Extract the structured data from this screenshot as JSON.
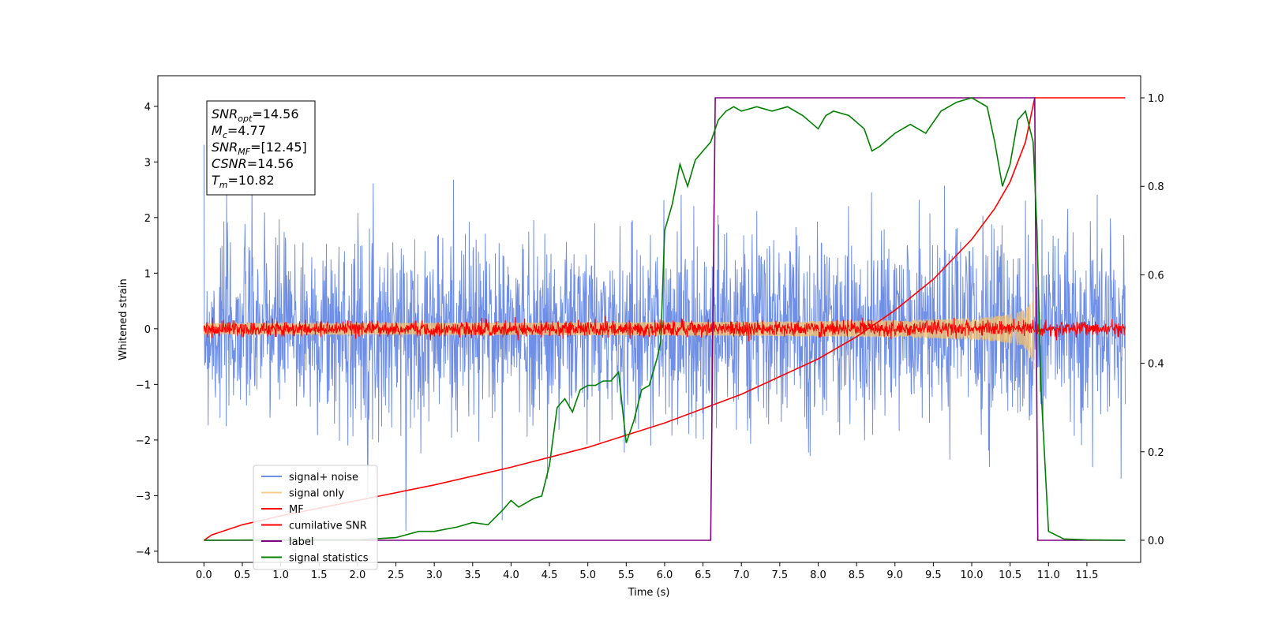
{
  "chart_data": {
    "type": "line",
    "xlabel": "Time (s)",
    "ylabel": "Whitened strain",
    "xlim": [
      -0.6,
      12.2
    ],
    "ylim": [
      -4.2,
      4.55
    ],
    "y2lim": [
      -0.05,
      1.05
    ],
    "x_ticks": [
      "0.0",
      "0.5",
      "1.0",
      "1.5",
      "2.0",
      "2.5",
      "3.0",
      "3.5",
      "4.0",
      "4.5",
      "5.0",
      "5.5",
      "6.0",
      "6.5",
      "7.0",
      "7.5",
      "8.0",
      "8.5",
      "9.0",
      "9.5",
      "10.0",
      "10.5",
      "11.0",
      "11.5"
    ],
    "y_ticks": [
      "4",
      "3",
      "2",
      "1",
      "0",
      "−1",
      "−2",
      "−3",
      "−4"
    ],
    "y2_ticks": [
      "1.0",
      "0.8",
      "0.6",
      "0.4",
      "0.2",
      "0.0"
    ],
    "annotation": {
      "lines": [
        {
          "main": "SNR",
          "sub": "opt",
          "rest": "=14.56"
        },
        {
          "main": "M",
          "sub": "c",
          "rest": "=4.77"
        },
        {
          "main": "SNR",
          "sub": "MF",
          "rest": "=[12.45]"
        },
        {
          "main": "CSNR",
          "sub": "",
          "rest": "=14.56"
        },
        {
          "main": "T",
          "sub": "m",
          "rest": "=10.82"
        }
      ]
    },
    "series": [
      {
        "name": "signal+ noise",
        "color": "#6f8fe6",
        "axis": "left",
        "style": "noise",
        "x_range": [
          0,
          12
        ],
        "amplitude_sd": 0.85
      },
      {
        "name": "signal only",
        "color": "#f5c26b",
        "axis": "left",
        "style": "chirp",
        "x_range": [
          0,
          10.82
        ],
        "envelope_end": 0.9
      },
      {
        "name": "MF",
        "color": "#ff0000",
        "axis": "left",
        "style": "noise",
        "x_range": [
          0,
          12
        ],
        "amplitude_sd": 0.07
      },
      {
        "name": "cumilative SNR",
        "color": "#ff0000",
        "axis": "right",
        "x": [
          0,
          0.1,
          0.5,
          1.0,
          2.0,
          3.0,
          4.0,
          5.0,
          6.0,
          7.0,
          8.0,
          8.5,
          9.0,
          9.5,
          10.0,
          10.3,
          10.5,
          10.7,
          10.82,
          12.0
        ],
        "values": [
          0,
          0.012,
          0.035,
          0.055,
          0.09,
          0.125,
          0.165,
          0.21,
          0.265,
          0.33,
          0.41,
          0.46,
          0.52,
          0.59,
          0.68,
          0.75,
          0.81,
          0.9,
          1.0,
          1.0
        ]
      },
      {
        "name": "label",
        "color": "#800080",
        "axis": "right",
        "x": [
          0,
          6.6,
          6.66,
          10.82,
          10.86,
          12.0
        ],
        "values": [
          0,
          0,
          1,
          1,
          0,
          0
        ]
      },
      {
        "name": "signal statistics",
        "color": "#008000",
        "axis": "right",
        "x": [
          0,
          1.0,
          2.0,
          2.5,
          2.8,
          3.0,
          3.3,
          3.5,
          3.7,
          3.9,
          4.0,
          4.1,
          4.3,
          4.4,
          4.5,
          4.6,
          4.65,
          4.7,
          4.8,
          4.9,
          5.0,
          5.1,
          5.2,
          5.3,
          5.4,
          5.5,
          5.6,
          5.7,
          5.8,
          5.9,
          5.95,
          6.0,
          6.1,
          6.2,
          6.3,
          6.4,
          6.5,
          6.6,
          6.7,
          6.8,
          6.9,
          7.0,
          7.2,
          7.4,
          7.6,
          7.8,
          8.0,
          8.1,
          8.2,
          8.4,
          8.6,
          8.7,
          8.8,
          9.0,
          9.2,
          9.4,
          9.6,
          9.8,
          10.0,
          10.2,
          10.3,
          10.4,
          10.5,
          10.6,
          10.7,
          10.8,
          10.85,
          10.9,
          11.0,
          11.2,
          11.5,
          12.0
        ],
        "values": [
          0.0,
          0.001,
          0.001,
          0.006,
          0.02,
          0.02,
          0.03,
          0.04,
          0.035,
          0.07,
          0.09,
          0.075,
          0.095,
          0.1,
          0.17,
          0.3,
          0.31,
          0.32,
          0.29,
          0.34,
          0.35,
          0.35,
          0.36,
          0.36,
          0.38,
          0.22,
          0.27,
          0.34,
          0.35,
          0.41,
          0.45,
          0.7,
          0.76,
          0.85,
          0.8,
          0.86,
          0.88,
          0.9,
          0.95,
          0.97,
          0.98,
          0.97,
          0.98,
          0.97,
          0.98,
          0.96,
          0.93,
          0.96,
          0.97,
          0.96,
          0.93,
          0.88,
          0.89,
          0.92,
          0.94,
          0.92,
          0.97,
          0.99,
          1.0,
          0.98,
          0.9,
          0.8,
          0.85,
          0.95,
          0.97,
          0.9,
          0.7,
          0.35,
          0.02,
          0.003,
          0.001,
          0.0
        ]
      }
    ],
    "legend": {
      "position": "lower-left"
    },
    "grid": false
  }
}
